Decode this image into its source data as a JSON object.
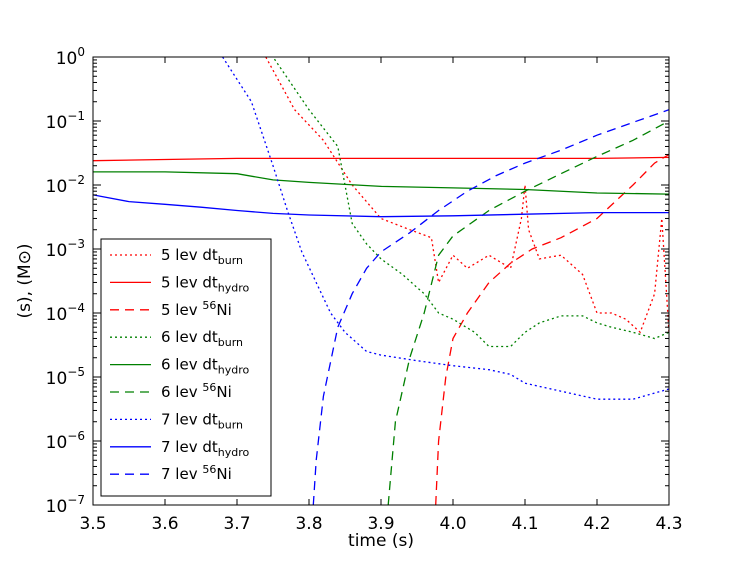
{
  "chart_data": {
    "type": "line",
    "title": "",
    "xlabel": "time (s)",
    "ylabel": "(s), (M⊙)",
    "yscale": "log",
    "xlim": [
      3.5,
      4.3
    ],
    "ylim": [
      1e-07,
      1
    ],
    "x_ticks": [
      3.5,
      3.6,
      3.7,
      3.8,
      3.9,
      4.0,
      4.1,
      4.2,
      4.3
    ],
    "x_tick_labels": [
      "3.5",
      "3.6",
      "3.7",
      "3.8",
      "3.9",
      "4.0",
      "4.1",
      "4.2",
      "4.3"
    ],
    "y_ticks": [
      -7,
      -6,
      -5,
      -4,
      -3,
      -2,
      -1,
      0
    ],
    "y_tick_labels": [
      {
        "base": "10",
        "exp": "−7"
      },
      {
        "base": "10",
        "exp": "−6"
      },
      {
        "base": "10",
        "exp": "−5"
      },
      {
        "base": "10",
        "exp": "−4"
      },
      {
        "base": "10",
        "exp": "−3"
      },
      {
        "base": "10",
        "exp": "−2"
      },
      {
        "base": "10",
        "exp": "−1"
      },
      {
        "base": "10",
        "exp": "0"
      }
    ],
    "grid": false,
    "legend_position": "lower-left",
    "series": [
      {
        "name": "5 lev dt_burn",
        "label_main": "5 lev dt",
        "label_sub": "burn",
        "label_sup": "",
        "label_tail": "",
        "color": "#ff0000",
        "dash": "2,3",
        "x": [
          3.74,
          3.78,
          3.82,
          3.86,
          3.9,
          3.94,
          3.97,
          3.98,
          4.0,
          4.02,
          4.05,
          4.08,
          4.095,
          4.1,
          4.105,
          4.12,
          4.15,
          4.18,
          4.2,
          4.22,
          4.24,
          4.26,
          4.28,
          4.29,
          4.3
        ],
        "y": [
          1.0,
          0.15,
          0.05,
          0.01,
          0.003,
          0.002,
          0.0015,
          0.0003,
          0.0008,
          0.0005,
          0.0008,
          0.0005,
          0.003,
          0.01,
          0.002,
          0.0007,
          0.0008,
          0.0004,
          0.0001,
          0.0001,
          8e-05,
          5e-05,
          0.0002,
          0.003,
          5e-05
        ]
      },
      {
        "name": "5 lev dt_hydro",
        "label_main": "5 lev dt",
        "label_sub": "hydro",
        "label_sup": "",
        "label_tail": "",
        "color": "#ff0000",
        "dash": "",
        "x": [
          3.5,
          3.6,
          3.7,
          3.8,
          3.9,
          4.0,
          4.1,
          4.2,
          4.3
        ],
        "y": [
          0.024,
          0.025,
          0.026,
          0.026,
          0.026,
          0.026,
          0.026,
          0.026,
          0.027
        ]
      },
      {
        "name": "5 lev 56Ni",
        "label_main": "5 lev ",
        "label_sub": "",
        "label_sup": "56",
        "label_tail": "Ni",
        "color": "#ff0000",
        "dash": "9,6",
        "x": [
          3.976,
          3.98,
          3.99,
          4.0,
          4.02,
          4.05,
          4.08,
          4.11,
          4.15,
          4.2,
          4.25,
          4.28,
          4.3
        ],
        "y": [
          1e-07,
          1e-06,
          1e-05,
          4e-05,
          0.0001,
          0.0003,
          0.0006,
          0.001,
          0.0015,
          0.003,
          0.01,
          0.022,
          0.03
        ]
      },
      {
        "name": "6 lev dt_burn",
        "label_main": "6 lev dt",
        "label_sub": "burn",
        "label_sup": "",
        "label_tail": "",
        "color": "#008000",
        "dash": "2,3",
        "x": [
          3.7,
          3.75,
          3.8,
          3.84,
          3.86,
          3.88,
          3.9,
          3.93,
          3.95,
          3.96,
          3.98,
          4.0,
          4.03,
          4.05,
          4.08,
          4.1,
          4.12,
          4.15,
          4.18,
          4.2,
          4.22,
          4.25,
          4.28,
          4.3
        ],
        "y": [
          5.0,
          1.0,
          0.15,
          0.04,
          0.0025,
          0.0012,
          0.0007,
          0.0004,
          0.00025,
          0.0002,
          0.0001,
          8e-05,
          5e-05,
          3e-05,
          3e-05,
          5e-05,
          7e-05,
          9e-05,
          9e-05,
          7e-05,
          6e-05,
          5e-05,
          4e-05,
          5e-05
        ]
      },
      {
        "name": "6 lev dt_hydro",
        "label_main": "6 lev dt",
        "label_sub": "hydro",
        "label_sup": "",
        "label_tail": "",
        "color": "#008000",
        "dash": "",
        "x": [
          3.5,
          3.6,
          3.7,
          3.75,
          3.8,
          3.9,
          4.0,
          4.1,
          4.2,
          4.3
        ],
        "y": [
          0.016,
          0.016,
          0.015,
          0.012,
          0.011,
          0.0095,
          0.009,
          0.0085,
          0.0075,
          0.0072
        ]
      },
      {
        "name": "6 lev 56Ni",
        "label_main": "6 lev ",
        "label_sub": "",
        "label_sup": "56",
        "label_tail": "Ni",
        "color": "#008000",
        "dash": "9,6",
        "x": [
          3.91,
          3.92,
          3.94,
          3.96,
          3.98,
          4.0,
          4.05,
          4.1,
          4.15,
          4.2,
          4.25,
          4.3
        ],
        "y": [
          1e-07,
          2e-06,
          2e-05,
          0.0001,
          0.0008,
          0.0016,
          0.004,
          0.008,
          0.015,
          0.028,
          0.05,
          0.1
        ]
      },
      {
        "name": "7 lev dt_burn",
        "label_main": "7 lev dt",
        "label_sub": "burn",
        "label_sup": "",
        "label_tail": "",
        "color": "#0000ff",
        "dash": "2,3",
        "x": [
          3.68,
          3.72,
          3.75,
          3.77,
          3.79,
          3.81,
          3.83,
          3.85,
          3.88,
          3.9,
          3.95,
          4.0,
          4.05,
          4.08,
          4.1,
          4.15,
          4.2,
          4.25,
          4.3
        ],
        "y": [
          1.0,
          0.2,
          0.02,
          0.004,
          0.0009,
          0.0003,
          0.0001,
          5e-05,
          2.5e-05,
          2.2e-05,
          1.8e-05,
          1.5e-05,
          1.3e-05,
          1.1e-05,
          8e-06,
          6e-06,
          4.5e-06,
          4.5e-06,
          6.5e-06
        ]
      },
      {
        "name": "7 lev dt_hydro",
        "label_main": "7 lev dt",
        "label_sub": "hydro",
        "label_sup": "",
        "label_tail": "",
        "color": "#0000ff",
        "dash": "",
        "x": [
          3.5,
          3.55,
          3.6,
          3.65,
          3.7,
          3.75,
          3.8,
          3.9,
          4.0,
          4.1,
          4.2,
          4.3
        ],
        "y": [
          0.007,
          0.0055,
          0.005,
          0.0045,
          0.004,
          0.0036,
          0.0034,
          0.0032,
          0.0033,
          0.0035,
          0.0037,
          0.0037
        ]
      },
      {
        "name": "7 lev 56Ni",
        "label_main": "7 lev ",
        "label_sub": "",
        "label_sup": "56",
        "label_tail": "Ni",
        "color": "#0000ff",
        "dash": "9,6",
        "x": [
          3.806,
          3.81,
          3.82,
          3.84,
          3.86,
          3.88,
          3.9,
          3.94,
          3.98,
          4.02,
          4.06,
          4.1,
          4.15,
          4.2,
          4.25,
          4.3
        ],
        "y": [
          1e-07,
          5e-07,
          5e-06,
          6e-05,
          0.0002,
          0.0005,
          0.0009,
          0.0018,
          0.004,
          0.008,
          0.014,
          0.022,
          0.035,
          0.06,
          0.095,
          0.15
        ]
      }
    ]
  }
}
